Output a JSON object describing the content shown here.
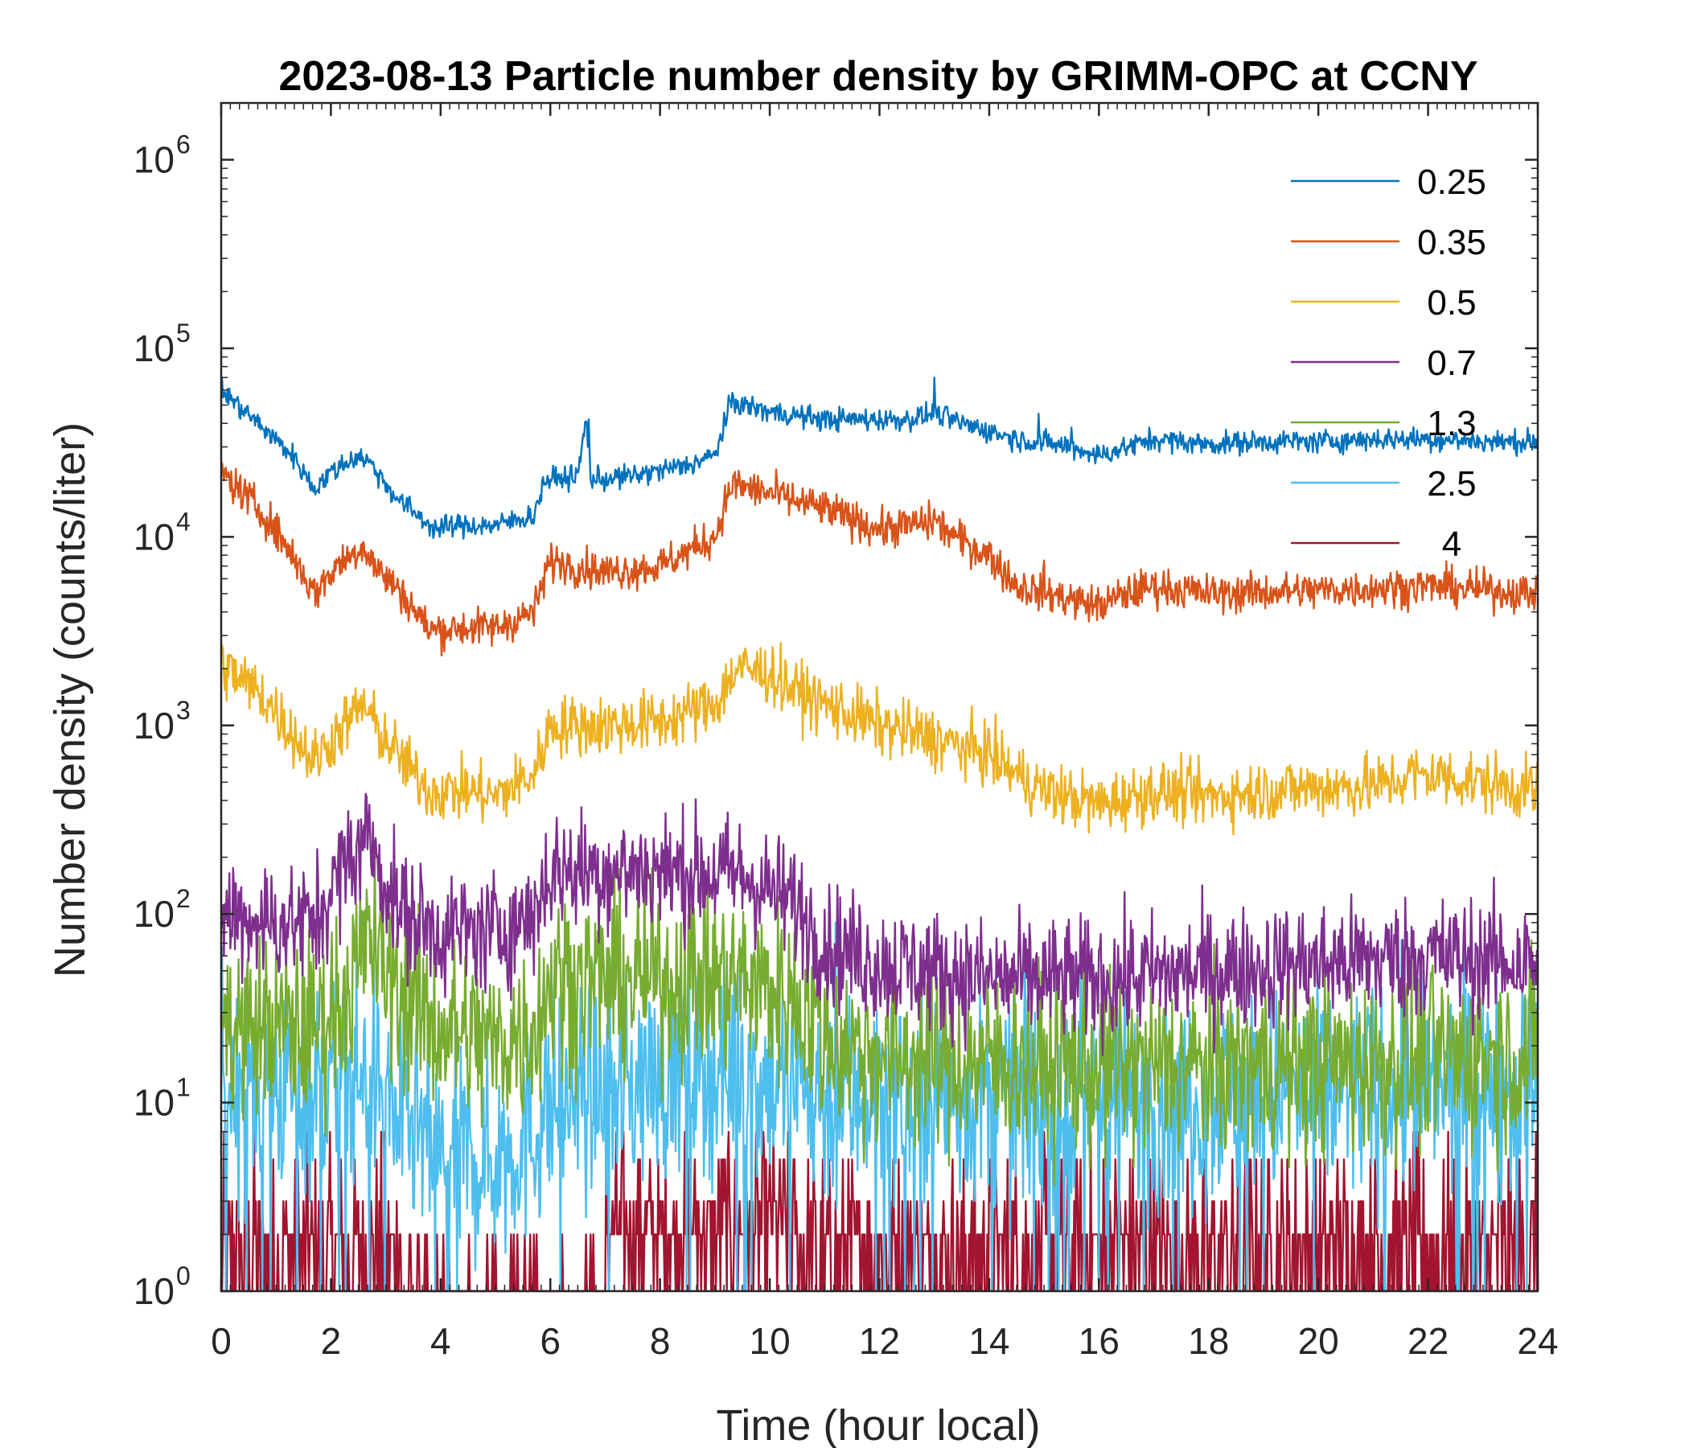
{
  "chart_data": {
    "type": "line",
    "title": "2023-08-13 Particle number density by GRIMM-OPC at CCNY",
    "xlabel": "Time (hour local)",
    "ylabel": "Number density (counts/liter)",
    "xlim": [
      0,
      24
    ],
    "ylim": [
      1,
      2000000
    ],
    "yscale": "log",
    "x_ticks": [
      "0",
      "2",
      "4",
      "6",
      "8",
      "10",
      "12",
      "14",
      "16",
      "18",
      "20",
      "22",
      "24"
    ],
    "y_ticks": [
      {
        "base": "10",
        "exp": "0"
      },
      {
        "base": "10",
        "exp": "1"
      },
      {
        "base": "10",
        "exp": "2"
      },
      {
        "base": "10",
        "exp": "3"
      },
      {
        "base": "10",
        "exp": "4"
      },
      {
        "base": "10",
        "exp": "5"
      },
      {
        "base": "10",
        "exp": "6"
      }
    ],
    "legend_position": "top-right",
    "series": [
      {
        "name": "0.25",
        "color": "#0072BD",
        "noise": 0.03,
        "x": [
          0,
          0.8,
          1.3,
          1.7,
          2.0,
          2.5,
          2.7,
          3.2,
          3.9,
          4.3,
          5.0,
          5.7,
          5.9,
          6.5,
          6.65,
          6.75,
          7.5,
          8.5,
          9.0,
          9.3,
          10.0,
          11.0,
          12.5,
          13.0,
          13.5,
          14.5,
          15.5,
          16.0,
          17.0,
          18.0,
          19.0,
          20.0,
          21.0,
          22.0,
          23.0,
          24.0
        ],
        "y": [
          60000,
          37000,
          27000,
          18000,
          22000,
          27000,
          25000,
          16000,
          11000,
          11500,
          11500,
          13000,
          20000,
          21000,
          42000,
          20000,
          21000,
          24000,
          27000,
          52000,
          46000,
          42000,
          42000,
          45000,
          40000,
          33000,
          30000,
          27000,
          33000,
          31000,
          32000,
          32000,
          33000,
          33000,
          32000,
          32000
        ],
        "spikes": [
          [
            6.7,
            42000
          ],
          [
            13.0,
            70000
          ],
          [
            14.9,
            45000
          ],
          [
            15.5,
            38000
          ]
        ]
      },
      {
        "name": "0.35",
        "color": "#D95319",
        "noise": 0.05,
        "x": [
          0,
          0.8,
          1.3,
          1.7,
          2.1,
          2.6,
          2.8,
          3.3,
          3.8,
          4.5,
          5.0,
          5.7,
          6.0,
          7.0,
          8.0,
          9.0,
          9.3,
          10.0,
          11.0,
          12.0,
          13.0,
          13.5,
          14.0,
          14.5,
          16.0,
          16.5,
          17.0,
          18.0,
          20.0,
          22.0,
          24.0
        ],
        "y": [
          22000,
          13000,
          8000,
          5000,
          7000,
          9000,
          7000,
          5000,
          3200,
          3300,
          3300,
          4000,
          7500,
          6500,
          7000,
          10000,
          19000,
          17000,
          14000,
          11000,
          12000,
          9500,
          8000,
          5500,
          4300,
          5000,
          5500,
          5000,
          5200,
          5500,
          5000
        ],
        "spikes": [
          [
            13.0,
            14000
          ],
          [
            15.0,
            7500
          ]
        ]
      },
      {
        "name": "0.5",
        "color": "#EDB120",
        "noise": 0.08,
        "x": [
          0,
          0.8,
          1.3,
          1.7,
          2.1,
          2.6,
          2.8,
          3.3,
          3.8,
          4.5,
          5.0,
          5.7,
          6.0,
          7.0,
          8.0,
          9.0,
          9.4,
          10.0,
          10.5,
          11.0,
          12.0,
          13.0,
          14.0,
          14.5,
          15.0,
          16.0,
          17.0,
          18.0,
          19.0,
          20.0,
          21.0,
          22.0,
          23.0,
          24.0
        ],
        "y": [
          2100,
          1400,
          900,
          650,
          900,
          1300,
          1000,
          650,
          450,
          450,
          420,
          550,
          1000,
          1000,
          1050,
          1300,
          2000,
          1900,
          1500,
          1300,
          1000,
          850,
          700,
          550,
          450,
          380,
          450,
          420,
          450,
          470,
          480,
          550,
          500,
          450
        ],
        "spikes": [
          [
            14.0,
            950
          ],
          [
            21.7,
            700
          ]
        ]
      },
      {
        "name": "0.7",
        "color": "#7E2F8E",
        "noise": 0.16,
        "x": [
          0,
          1.0,
          1.7,
          2.2,
          2.6,
          2.8,
          3.3,
          4.0,
          5.0,
          5.7,
          6.0,
          8.0,
          9.5,
          10.5,
          11.0,
          12.0,
          14.0,
          16.0,
          18.0,
          20.0,
          22.0,
          24.0
        ],
        "y": [
          100,
          90,
          90,
          170,
          250,
          200,
          100,
          80,
          80,
          100,
          170,
          170,
          160,
          110,
          70,
          55,
          45,
          45,
          50,
          55,
          60,
          55
        ],
        "spikes": [
          [
            2.7,
            380
          ]
        ]
      },
      {
        "name": "1.3",
        "color": "#77AC30",
        "noise": 0.24,
        "x": [
          0,
          1.7,
          2.2,
          2.7,
          3.2,
          4.0,
          5.0,
          5.7,
          6.0,
          8.0,
          9.5,
          10.5,
          11.0,
          12.0,
          16.0,
          20.0,
          24.0
        ],
        "y": [
          25,
          25,
          35,
          70,
          40,
          25,
          20,
          25,
          45,
          45,
          45,
          35,
          22,
          18,
          15,
          16,
          18
        ],
        "spikes": [
          [
            2.7,
            110
          ]
        ]
      },
      {
        "name": "2.5",
        "color": "#4DBEEE",
        "noise": 0.28,
        "x": [
          0,
          2.0,
          2.7,
          3.3,
          4.0,
          5.0,
          5.7,
          6.0,
          8.0,
          9.5,
          10.5,
          11.0,
          12.0,
          16.0,
          20.0,
          24.0
        ],
        "y": [
          12,
          12,
          15,
          8,
          5,
          5,
          7,
          10,
          14,
          16,
          12,
          10,
          11,
          10,
          11,
          13
        ],
        "spikes": [
          [
            11.2,
            90
          ]
        ]
      },
      {
        "name": "4",
        "color": "#A2142F",
        "noise": 0,
        "x": [
          0,
          24
        ],
        "y": [
          2,
          2
        ],
        "spikes": []
      }
    ]
  }
}
